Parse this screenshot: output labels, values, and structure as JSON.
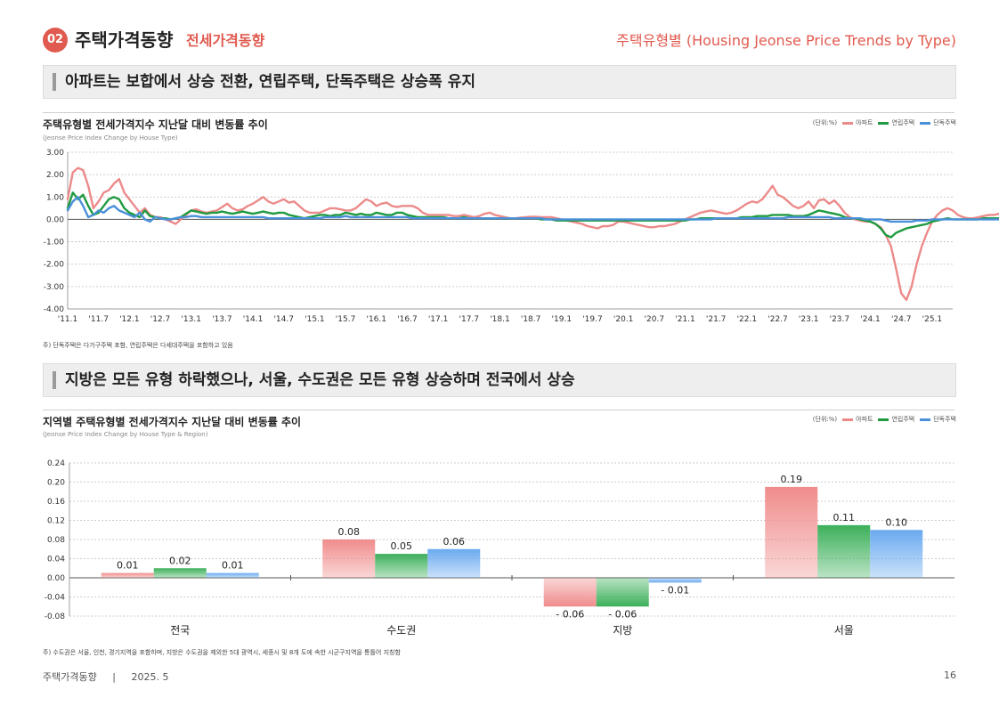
{
  "header": {
    "badge": "02",
    "title": "주택가격동향",
    "subtitle": "전세가격동향",
    "right": "주택유형별 (Housing Jeonse Price Trends by Type)"
  },
  "section1": {
    "headline": "아파트는 보합에서 상승 전환, 연립주택, 단독주택은 상승폭 유지"
  },
  "section2": {
    "headline": "지방은 모든 유형 하락했으나, 서울, 수도권은 모든 유형 상승하며 전국에서 상승"
  },
  "legend": {
    "unit": "(단위:%)"
  },
  "colors": {
    "apt": "#ec8a8a",
    "row": "#1f9a40",
    "detached": "#4a90d9"
  },
  "notes": {
    "chart1": "주) 단독주택은 다가구주택 포함, 연립주택은 다세대주택을 포함하고 있음",
    "chart2": "주) 수도권은 서울, 인천, 경기지역을 포함하며, 지방은 수도권을 제외한 5대 광역시, 세종시 및 8개 도에 속한 시군구지역을 통틀어 지칭함"
  },
  "footer": {
    "left": "주택가격동향",
    "sep": "|",
    "date": "2025. 5",
    "page": "16"
  },
  "chart_data": [
    {
      "type": "line",
      "title": "주택유형별 전세가격지수 지난달 대비 변동률 추이",
      "subtitle": "(Jeonse Price Index Change by House Type)",
      "ylim": [
        -4,
        3
      ],
      "yticks": [
        "3.00",
        "2.00",
        "1.00",
        "0.00",
        "-1.00",
        "-2.00",
        "-3.00",
        "-4.00"
      ],
      "xtick_labels": [
        "'11.1",
        "'11.7",
        "'12.1",
        "'12.7",
        "'13.1",
        "'13.7",
        "'14.1",
        "'14.7",
        "'15.1",
        "'15.7",
        "'16.1",
        "'16.7",
        "'17.1",
        "'17.7",
        "'18.1",
        "'18.7",
        "'19.1",
        "'19.7",
        "'20.1",
        "'20.7",
        "'21.1",
        "'21.7",
        "'22.1",
        "'22.7",
        "'23.1",
        "'23.7",
        "'24.1",
        "'24.7",
        "'25.1"
      ],
      "grid": true,
      "legend": "top-right",
      "series": [
        {
          "name": "아파트",
          "color": "#ec8a8a",
          "x_start": "2011-01",
          "values": [
            0.9,
            2.1,
            2.3,
            2.2,
            1.5,
            0.5,
            0.8,
            1.2,
            1.3,
            1.6,
            1.8,
            1.2,
            0.9,
            0.6,
            0.3,
            0.5,
            0.2,
            0.1,
            0.1,
            0.0,
            -0.1,
            -0.2,
            0.0,
            0.2,
            0.4,
            0.45,
            0.35,
            0.3,
            0.35,
            0.4,
            0.55,
            0.7,
            0.5,
            0.4,
            0.45,
            0.6,
            0.7,
            0.85,
            1.0,
            0.8,
            0.7,
            0.8,
            0.9,
            0.75,
            0.8,
            0.6,
            0.4,
            0.3,
            0.3,
            0.3,
            0.4,
            0.5,
            0.5,
            0.45,
            0.4,
            0.4,
            0.5,
            0.7,
            0.9,
            0.8,
            0.6,
            0.7,
            0.75,
            0.6,
            0.55,
            0.6,
            0.6,
            0.6,
            0.5,
            0.3,
            0.2,
            0.2,
            0.2,
            0.2,
            0.2,
            0.15,
            0.15,
            0.2,
            0.15,
            0.1,
            0.15,
            0.25,
            0.3,
            0.2,
            0.15,
            0.1,
            0.05,
            0.05,
            0.08,
            0.1,
            0.12,
            0.12,
            0.1,
            0.1,
            0.1,
            0.05,
            0.0,
            -0.05,
            -0.1,
            -0.15,
            -0.2,
            -0.3,
            -0.35,
            -0.4,
            -0.3,
            -0.3,
            -0.25,
            -0.1,
            -0.1,
            -0.15,
            -0.2,
            -0.25,
            -0.3,
            -0.35,
            -0.35,
            -0.3,
            -0.3,
            -0.25,
            -0.2,
            -0.1,
            0.0,
            0.1,
            0.2,
            0.3,
            0.35,
            0.4,
            0.35,
            0.3,
            0.25,
            0.3,
            0.4,
            0.55,
            0.7,
            0.8,
            0.75,
            0.9,
            1.2,
            1.5,
            1.1,
            1.0,
            0.8,
            0.6,
            0.5,
            0.6,
            0.8,
            0.5,
            0.85,
            0.9,
            0.7,
            0.85,
            0.6,
            0.3,
            0.1,
            0.0,
            -0.05,
            -0.1,
            -0.1,
            -0.2,
            -0.35,
            -0.7,
            -1.2,
            -2.2,
            -3.3,
            -3.6,
            -3.0,
            -2.0,
            -1.2,
            -0.6,
            -0.1,
            0.2,
            0.4,
            0.5,
            0.4,
            0.2,
            0.1,
            0.05,
            0.05,
            0.1,
            0.15,
            0.2,
            0.2,
            0.25,
            0.3,
            0.25,
            0.2,
            0.1,
            0.0,
            0.0,
            0.05,
            0.05,
            0.05
          ]
        },
        {
          "name": "연립주택",
          "color": "#1f9a40",
          "x_start": "2011-01",
          "values": [
            0.5,
            1.2,
            0.9,
            1.1,
            0.6,
            0.2,
            0.3,
            0.6,
            0.9,
            1.0,
            0.9,
            0.5,
            0.3,
            0.2,
            0.1,
            0.4,
            0.15,
            0.1,
            0.05,
            0.05,
            0.0,
            0.05,
            0.1,
            0.25,
            0.4,
            0.35,
            0.3,
            0.25,
            0.3,
            0.3,
            0.35,
            0.3,
            0.25,
            0.3,
            0.35,
            0.3,
            0.25,
            0.3,
            0.35,
            0.3,
            0.25,
            0.3,
            0.3,
            0.2,
            0.15,
            0.1,
            0.05,
            0.1,
            0.15,
            0.2,
            0.2,
            0.15,
            0.2,
            0.2,
            0.3,
            0.25,
            0.2,
            0.25,
            0.2,
            0.2,
            0.3,
            0.25,
            0.2,
            0.2,
            0.3,
            0.3,
            0.2,
            0.15,
            0.1,
            0.1,
            0.1,
            0.1,
            0.1,
            0.1,
            0.05,
            0.05,
            0.05,
            0.1,
            0.05,
            0.05,
            0.05,
            0.05,
            0.05,
            0.05,
            0.05,
            0.05,
            0.05,
            0.05,
            0.05,
            0.05,
            0.05,
            0.05,
            0.0,
            0.0,
            0.0,
            -0.05,
            -0.05,
            -0.05,
            -0.05,
            -0.05,
            -0.05,
            -0.05,
            -0.05,
            -0.05,
            -0.05,
            -0.05,
            -0.05,
            -0.05,
            -0.05,
            -0.05,
            -0.05,
            -0.05,
            -0.05,
            -0.05,
            -0.05,
            -0.05,
            -0.05,
            -0.05,
            -0.05,
            -0.05,
            -0.05,
            0.0,
            0.0,
            0.05,
            0.05,
            0.05,
            0.05,
            0.05,
            0.05,
            0.05,
            0.05,
            0.1,
            0.1,
            0.1,
            0.15,
            0.15,
            0.15,
            0.2,
            0.2,
            0.2,
            0.2,
            0.15,
            0.15,
            0.15,
            0.2,
            0.3,
            0.4,
            0.35,
            0.3,
            0.25,
            0.2,
            0.1,
            0.05,
            0.05,
            0.0,
            -0.05,
            -0.1,
            -0.2,
            -0.4,
            -0.7,
            -0.8,
            -0.6,
            -0.5,
            -0.4,
            -0.35,
            -0.3,
            -0.25,
            -0.2,
            -0.1,
            -0.05,
            0.0,
            0.05,
            0.0,
            0.0,
            0.0,
            0.0,
            0.0,
            0.0,
            0.05,
            0.05,
            0.05,
            0.05,
            0.05,
            0.05,
            0.05,
            0.05,
            0.05,
            0.05,
            0.05,
            0.05,
            0.05,
            0.05,
            0.05,
            0.05,
            0.05
          ]
        },
        {
          "name": "단독주택",
          "color": "#4a90d9",
          "x_start": "2011-01",
          "values": [
            0.4,
            0.8,
            1.0,
            0.6,
            0.1,
            0.2,
            0.4,
            0.3,
            0.5,
            0.6,
            0.4,
            0.3,
            0.2,
            0.1,
            0.3,
            0.0,
            -0.1,
            0.1,
            0.05,
            0.0,
            0.0,
            0.05,
            0.1,
            0.1,
            0.15,
            0.15,
            0.1,
            0.1,
            0.1,
            0.1,
            0.1,
            0.1,
            0.1,
            0.1,
            0.1,
            0.1,
            0.1,
            0.1,
            0.1,
            0.05,
            0.05,
            0.05,
            0.05,
            0.05,
            0.05,
            0.05,
            0.05,
            0.05,
            0.05,
            0.05,
            0.1,
            0.1,
            0.1,
            0.1,
            0.15,
            0.1,
            0.1,
            0.1,
            0.1,
            0.1,
            0.1,
            0.1,
            0.1,
            0.1,
            0.1,
            0.1,
            0.1,
            0.05,
            0.05,
            0.05,
            0.05,
            0.05,
            0.05,
            0.05,
            0.05,
            0.05,
            0.05,
            0.05,
            0.05,
            0.05,
            0.05,
            0.05,
            0.05,
            0.05,
            0.05,
            0.05,
            0.05,
            0.05,
            0.05,
            0.05,
            0.05,
            0.05,
            0.05,
            0.0,
            0.0,
            0.0,
            0.0,
            0.0,
            0.0,
            0.0,
            0.0,
            0.0,
            0.0,
            0.0,
            0.0,
            0.0,
            0.0,
            0.0,
            0.0,
            0.0,
            0.0,
            0.0,
            0.0,
            0.0,
            0.0,
            0.0,
            0.0,
            0.0,
            0.0,
            0.0,
            0.0,
            0.0,
            0.0,
            0.0,
            0.0,
            0.0,
            0.05,
            0.05,
            0.05,
            0.05,
            0.05,
            0.05,
            0.05,
            0.05,
            0.05,
            0.05,
            0.05,
            0.05,
            0.05,
            0.05,
            0.1,
            0.1,
            0.1,
            0.1,
            0.1,
            0.1,
            0.1,
            0.1,
            0.1,
            0.05,
            0.05,
            0.05,
            0.05,
            0.05,
            0.05,
            0.0,
            0.0,
            0.0,
            0.0,
            -0.05,
            -0.1,
            -0.1,
            -0.1,
            -0.1,
            -0.1,
            -0.05,
            -0.05,
            -0.05,
            0.0,
            0.0,
            0.0,
            0.0,
            0.0,
            0.0,
            0.0,
            0.0,
            0.0,
            0.0,
            0.0,
            0.0,
            0.0,
            0.0,
            0.0,
            0.0,
            0.0,
            0.0,
            0.0,
            0.0,
            0.0,
            0.0,
            0.0,
            0.0,
            0.0
          ]
        }
      ]
    },
    {
      "type": "bar",
      "title": "지역별 주택유형별 전세가격지수 지난달 대비 변동률 추이",
      "subtitle": "(Jeonse Price Index Change by House Type & Region)",
      "categories": [
        "전국",
        "수도권",
        "지방",
        "서울"
      ],
      "ylim": [
        -0.08,
        0.24
      ],
      "yticks": [
        "0.24",
        "0.20",
        "0.16",
        "0.12",
        "0.08",
        "0.04",
        "0.00",
        "-0.04",
        "-0.08"
      ],
      "grid": true,
      "legend": "top-right",
      "series": [
        {
          "name": "아파트",
          "color": "#f08c8c",
          "values": [
            0.01,
            0.08,
            -0.06,
            0.19
          ],
          "labels": [
            "0.01",
            "0.08",
            "- 0.06",
            "0.19"
          ]
        },
        {
          "name": "연립주택",
          "color": "#3cb05a",
          "values": [
            0.02,
            0.05,
            -0.06,
            0.11
          ],
          "labels": [
            "0.02",
            "0.05",
            "- 0.06",
            "0.11"
          ]
        },
        {
          "name": "단독주택",
          "color": "#6aaaf0",
          "values": [
            0.01,
            0.06,
            -0.01,
            0.1
          ],
          "labels": [
            "0.01",
            "0.06",
            "- 0.01",
            "0.10"
          ]
        }
      ]
    }
  ]
}
